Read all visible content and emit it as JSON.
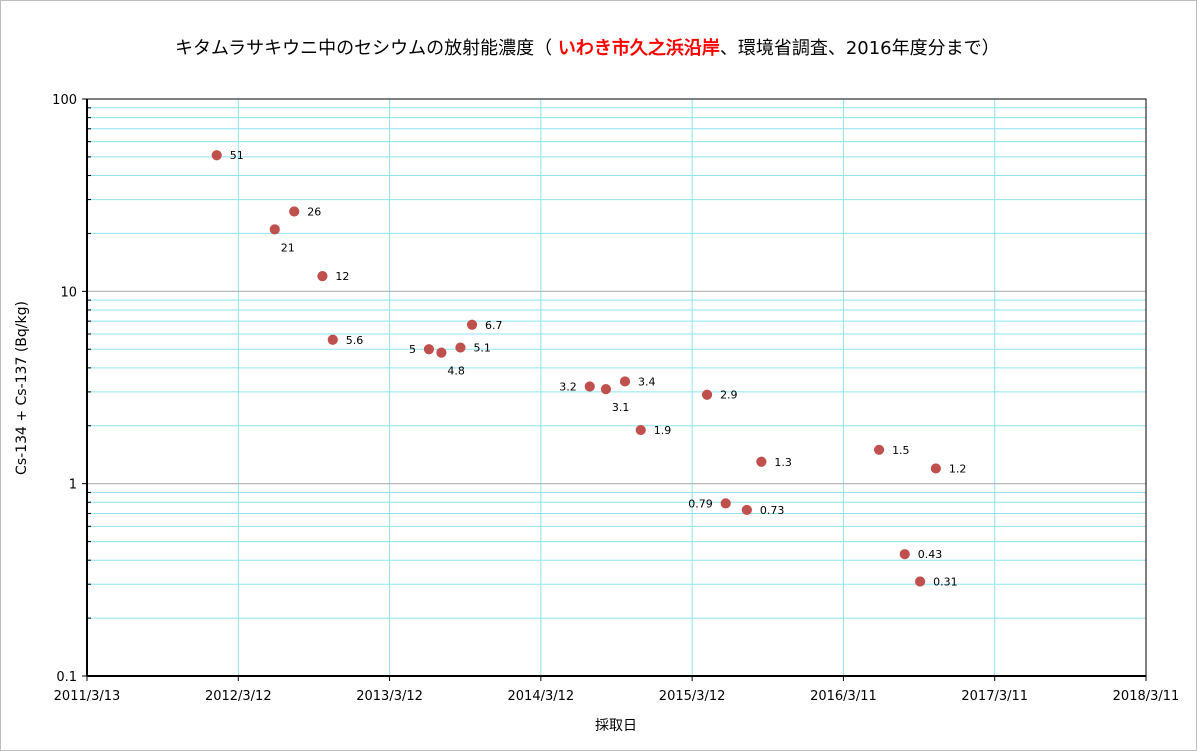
{
  "chart_data": {
    "type": "scatter",
    "title_prefix": "キタムラサキウニ中のセシウムの放射能濃度（ ",
    "title_highlight": "いわき市久之浜沿岸",
    "title_suffix": "、環境省調査、2016年度分まで）",
    "xlabel": "採取日",
    "ylabel": "Cs-134 + Cs-137 (Bq/kg)",
    "x_scale": "date",
    "y_scale": "log",
    "xlim": [
      "2011-03-13",
      "2018-03-11"
    ],
    "ylim": [
      0.1,
      100
    ],
    "x_ticks": [
      "2011/3/13",
      "2012/3/12",
      "2013/3/12",
      "2014/3/12",
      "2015/3/12",
      "2016/3/11",
      "2017/3/11",
      "2018/3/11"
    ],
    "y_ticks": [
      "0.1",
      "1",
      "10",
      "100"
    ],
    "grid": true,
    "legend": "none",
    "marker_color": "#c0504d",
    "points": [
      {
        "x": "2012-01-20",
        "y": 51,
        "label": "51"
      },
      {
        "x": "2012-06-08",
        "y": 21,
        "label": "21"
      },
      {
        "x": "2012-07-25",
        "y": 26,
        "label": "26"
      },
      {
        "x": "2012-10-01",
        "y": 12,
        "label": "12"
      },
      {
        "x": "2012-10-26",
        "y": 5.6,
        "label": "5.6"
      },
      {
        "x": "2013-06-15",
        "y": 5,
        "label": "5"
      },
      {
        "x": "2013-07-15",
        "y": 4.8,
        "label": "4.8"
      },
      {
        "x": "2013-08-30",
        "y": 5.1,
        "label": "5.1"
      },
      {
        "x": "2013-09-27",
        "y": 6.7,
        "label": "6.7"
      },
      {
        "x": "2014-07-08",
        "y": 3.2,
        "label": "3.2"
      },
      {
        "x": "2014-08-16",
        "y": 3.1,
        "label": "3.1"
      },
      {
        "x": "2014-10-01",
        "y": 3.4,
        "label": "3.4"
      },
      {
        "x": "2014-11-08",
        "y": 1.9,
        "label": "1.9"
      },
      {
        "x": "2015-04-17",
        "y": 2.9,
        "label": "2.9"
      },
      {
        "x": "2015-06-01",
        "y": 0.79,
        "label": "0.79"
      },
      {
        "x": "2015-07-22",
        "y": 0.73,
        "label": "0.73"
      },
      {
        "x": "2015-08-26",
        "y": 1.3,
        "label": "1.3"
      },
      {
        "x": "2016-06-05",
        "y": 1.5,
        "label": "1.5"
      },
      {
        "x": "2016-08-06",
        "y": 0.43,
        "label": "0.43"
      },
      {
        "x": "2016-09-12",
        "y": 0.31,
        "label": "0.31"
      },
      {
        "x": "2016-10-20",
        "y": 1.2,
        "label": "1.2"
      }
    ]
  }
}
